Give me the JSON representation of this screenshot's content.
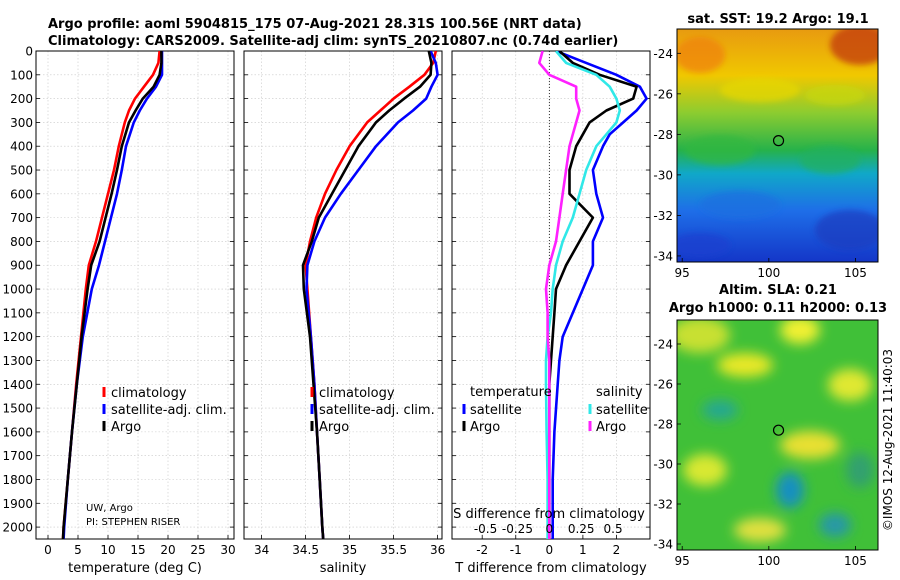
{
  "header": {
    "line1": "Argo profile: aoml 5904815_175 07-Aug-2021 28.31S 100.56E (NRT data)",
    "line2": "Climatology: CARS2009. Satellite-adj clim: synTS_20210807.nc (0.74d earlier)"
  },
  "colors": {
    "climatology": "#ff0000",
    "satellite": "#0000ff",
    "argo": "#000000",
    "temp_sat": "#00e0e0",
    "sal_argo": "#ff00ff"
  },
  "chart_data": [
    {
      "type": "line",
      "panel": "temperature",
      "xlabel": "temperature (deg C)",
      "xlim": [
        -2,
        31
      ],
      "xticks": [
        0,
        5,
        10,
        15,
        20,
        25,
        30
      ],
      "ylim": [
        2050,
        0
      ],
      "yticks": [
        0,
        100,
        200,
        300,
        400,
        500,
        600,
        700,
        800,
        900,
        1000,
        1100,
        1200,
        1300,
        1400,
        1500,
        1600,
        1700,
        1800,
        1900,
        2000
      ],
      "grid": true,
      "legend": [
        "climatology",
        "satellite-adj. clim.",
        "Argo"
      ],
      "legend_position": "lower-right",
      "annotation": [
        "UW, Argo",
        "PI: STEPHEN RISER"
      ],
      "series": [
        {
          "name": "climatology",
          "color": "red",
          "y": [
            0,
            50,
            100,
            150,
            200,
            250,
            300,
            400,
            500,
            600,
            700,
            800,
            900,
            1000,
            1200,
            1400,
            1600,
            1800,
            2000,
            2050
          ],
          "x": [
            18.6,
            18.4,
            17.5,
            16.0,
            14.5,
            13.5,
            12.8,
            11.8,
            11.0,
            10.0,
            9.0,
            8.0,
            6.8,
            6.3,
            5.5,
            4.7,
            4.0,
            3.3,
            2.6,
            2.5
          ]
        },
        {
          "name": "satellite-adj. clim.",
          "color": "blue",
          "y": [
            0,
            50,
            100,
            150,
            200,
            250,
            300,
            400,
            500,
            600,
            700,
            800,
            900,
            1000,
            1200,
            1400,
            1600,
            1800,
            2000,
            2050
          ],
          "x": [
            19.0,
            19.0,
            19.0,
            18.0,
            16.5,
            15.3,
            14.3,
            13.0,
            12.3,
            11.5,
            10.5,
            9.5,
            8.5,
            7.3,
            5.8,
            4.8,
            4.0,
            3.3,
            2.7,
            2.6
          ]
        },
        {
          "name": "Argo",
          "color": "black",
          "y": [
            0,
            50,
            100,
            150,
            200,
            250,
            300,
            400,
            500,
            600,
            700,
            800,
            900,
            1000,
            1200,
            1400,
            1600,
            1800,
            2000,
            2050
          ],
          "x": [
            18.9,
            18.9,
            18.6,
            17.6,
            15.8,
            14.6,
            13.5,
            12.3,
            11.5,
            10.6,
            9.6,
            8.6,
            7.2,
            6.6,
            5.6,
            4.8,
            4.0,
            3.3,
            2.6,
            2.5
          ]
        }
      ]
    },
    {
      "type": "line",
      "panel": "salinity",
      "xlabel": "salinity",
      "xlim": [
        33.8,
        36.05
      ],
      "xticks": [
        34,
        34.5,
        35,
        35.5,
        36
      ],
      "ylim": [
        2050,
        0
      ],
      "grid": true,
      "legend": [
        "climatology",
        "satellite-adj. clim.",
        "Argo"
      ],
      "legend_position": "lower-right",
      "series": [
        {
          "name": "climatology",
          "color": "red",
          "y": [
            0,
            50,
            100,
            150,
            200,
            250,
            300,
            400,
            500,
            600,
            700,
            800,
            900,
            1000,
            1200,
            1400,
            1600,
            1800,
            2000,
            2050
          ],
          "x": [
            35.98,
            35.95,
            35.85,
            35.68,
            35.5,
            35.35,
            35.2,
            35.0,
            34.85,
            34.72,
            34.62,
            34.55,
            34.5,
            34.52,
            34.56,
            34.6,
            34.63,
            34.66,
            34.69,
            34.7
          ]
        },
        {
          "name": "satellite-adj. clim.",
          "color": "blue",
          "y": [
            0,
            50,
            100,
            150,
            200,
            250,
            300,
            400,
            500,
            600,
            700,
            800,
            900,
            1000,
            1200,
            1400,
            1600,
            1800,
            2000,
            2050
          ],
          "x": [
            35.92,
            35.98,
            36.0,
            35.93,
            35.87,
            35.72,
            35.55,
            35.3,
            35.1,
            34.9,
            34.72,
            34.6,
            34.52,
            34.51,
            34.56,
            34.6,
            34.63,
            34.66,
            34.69,
            34.7
          ]
        },
        {
          "name": "Argo",
          "color": "black",
          "y": [
            0,
            50,
            100,
            150,
            200,
            250,
            300,
            400,
            500,
            600,
            700,
            800,
            900,
            1000,
            1200,
            1400,
            1600,
            1800,
            2000,
            2050
          ],
          "x": [
            35.9,
            35.93,
            35.92,
            35.8,
            35.62,
            35.45,
            35.3,
            35.1,
            34.95,
            34.8,
            34.65,
            34.57,
            34.47,
            34.48,
            34.55,
            34.59,
            34.63,
            34.66,
            34.69,
            34.7
          ]
        }
      ]
    },
    {
      "type": "line",
      "panel": "differences",
      "xlabel": "T difference from climatology",
      "xlabel_top": "S difference from climatology",
      "xlim": [
        -2.9,
        3.0
      ],
      "xticks": [
        -2,
        -1,
        0,
        1,
        2
      ],
      "xticks_top_labels": [
        "-0.5",
        "-0.25",
        "0",
        "0.25",
        "0.5"
      ],
      "xticks_top_values": [
        -1.9,
        -0.95,
        0,
        0.95,
        1.9
      ],
      "ylim": [
        2050,
        0
      ],
      "grid": true,
      "legend_temperature": {
        "title": "temperature",
        "entries": [
          "satellite",
          "Argo"
        ]
      },
      "legend_salinity": {
        "title": "salinity",
        "entries": [
          "satellite",
          "Argo"
        ]
      },
      "series": [
        {
          "name": "satellite",
          "group": "temperature",
          "color": "blue",
          "y": [
            0,
            50,
            100,
            150,
            200,
            250,
            300,
            350,
            400,
            500,
            600,
            700,
            800,
            900,
            1000,
            1100,
            1200,
            1300,
            1400,
            1600,
            1800,
            2000,
            2050
          ],
          "x": [
            0.2,
            1.1,
            2.0,
            2.7,
            2.9,
            2.6,
            2.2,
            1.8,
            1.6,
            1.3,
            1.4,
            1.6,
            1.3,
            1.3,
            1.0,
            0.7,
            0.4,
            0.3,
            0.25,
            0.15,
            0.1,
            0.1,
            0.1
          ]
        },
        {
          "name": "Argo",
          "group": "temperature",
          "color": "black",
          "y": [
            0,
            50,
            100,
            150,
            200,
            250,
            300,
            350,
            400,
            500,
            600,
            700,
            800,
            900,
            1000,
            1100,
            1200,
            1300,
            1400,
            1600,
            1800,
            2000,
            2050
          ],
          "x": [
            0.3,
            0.7,
            1.5,
            2.6,
            2.5,
            1.7,
            1.2,
            1.0,
            0.8,
            0.6,
            0.6,
            1.3,
            0.9,
            0.5,
            0.2,
            0.15,
            0.1,
            0.05,
            0.0,
            0.0,
            0.0,
            0.0,
            0.0
          ]
        },
        {
          "name": "satellite",
          "group": "salinity",
          "color": "cyan",
          "y": [
            0,
            50,
            100,
            150,
            200,
            250,
            300,
            350,
            400,
            500,
            600,
            700,
            800,
            900,
            1000,
            1100,
            1200,
            1300,
            1400,
            1600,
            1800,
            2000,
            2050
          ],
          "x": [
            0.2,
            0.5,
            1.4,
            1.8,
            2.0,
            2.1,
            2.0,
            1.7,
            1.4,
            1.1,
            0.9,
            0.7,
            0.4,
            0.2,
            0.1,
            0.05,
            -0.05,
            -0.1,
            -0.1,
            -0.08,
            -0.05,
            -0.05,
            -0.05
          ]
        },
        {
          "name": "Argo",
          "group": "salinity",
          "color": "magenta",
          "y": [
            0,
            50,
            100,
            150,
            200,
            250,
            300,
            350,
            400,
            500,
            600,
            700,
            800,
            900,
            1000,
            1100,
            1200,
            1300,
            1400,
            1600,
            1800,
            2000,
            2050
          ],
          "x": [
            -0.2,
            -0.3,
            0.0,
            0.8,
            0.8,
            0.9,
            0.8,
            0.7,
            0.6,
            0.5,
            0.4,
            0.3,
            0.2,
            0.0,
            -0.1,
            -0.05,
            -0.05,
            0.0,
            0.0,
            0.0,
            0.0,
            0.0,
            0.0
          ]
        }
      ]
    },
    {
      "type": "heatmap",
      "panel": "sst_map",
      "title": "sat. SST: 19.2 Argo: 19.1",
      "xlim": [
        94.7,
        106.3
      ],
      "ylim": [
        -34.3,
        -22.8
      ],
      "xticks": [
        95,
        100,
        105
      ],
      "yticks": [
        -24,
        -26,
        -28,
        -30,
        -32,
        -34
      ],
      "marker": {
        "lon": 100.56,
        "lat": -28.31
      }
    },
    {
      "type": "heatmap",
      "panel": "sla_map",
      "title": "Altim. SLA: 0.21",
      "subtitle": "Argo h1000: 0.11 h2000: 0.13",
      "xlim": [
        94.7,
        106.3
      ],
      "ylim": [
        -34.3,
        -22.8
      ],
      "xticks": [
        95,
        100,
        105
      ],
      "yticks": [
        -24,
        -26,
        -28,
        -30,
        -32,
        -34
      ],
      "marker": {
        "lon": 100.56,
        "lat": -28.31
      }
    }
  ],
  "footer": {
    "stamp": "©IMOS 12-Aug-2021 11:40:03"
  }
}
